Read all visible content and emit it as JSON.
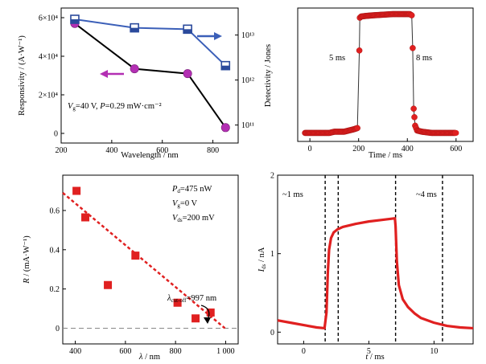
{
  "chart_data": [
    {
      "type": "line",
      "panel": "top-left",
      "xlabel": "Wavelength / nm",
      "ylabel_left": "Responsivity / (A·W⁻¹)",
      "ylabel_right": "Detectivity / Jones",
      "annotation": "Vg=40 V, P=0.29 mW·cm⁻²",
      "annotation_parts": {
        "v": "V",
        "g": "g",
        "rest": "=40 V, ",
        "p": "P",
        "rest2": "=0.29 mW·cm⁻²"
      },
      "xlim": [
        200,
        900
      ],
      "xticks": [
        "200",
        "400",
        "600",
        "800"
      ],
      "ylim_left": [
        -5000,
        65000
      ],
      "yticks_left": [
        "0",
        "2×10⁴",
        "4×10⁴",
        "6×10⁴"
      ],
      "yticks_right": [
        "10¹¹",
        "10¹²",
        "10¹³"
      ],
      "right_log_range": [
        10.6,
        13.6
      ],
      "series": [
        {
          "role": "responsivity",
          "axis": "left",
          "color": "#000000",
          "marker": "#b32fb3",
          "x": [
            254,
            490,
            700,
            850
          ],
          "y": [
            57000,
            33500,
            31000,
            3000
          ]
        },
        {
          "role": "detectivity",
          "axis": "right",
          "color": "#3b5fb8",
          "marker": "#2b4a9c",
          "x": [
            254,
            490,
            700,
            850
          ],
          "y_log": [
            13.35,
            13.16,
            13.13,
            12.32
          ]
        }
      ]
    },
    {
      "type": "line",
      "panel": "top-right",
      "xlabel": "Time / ms",
      "xlim": [
        -50,
        670
      ],
      "xticks": [
        "0",
        "200",
        "400",
        "600"
      ],
      "annotations": [
        "5 ms",
        "8 ms"
      ],
      "color": "#e02020",
      "x": [
        -20,
        0,
        20,
        40,
        60,
        80,
        100,
        120,
        140,
        160,
        180,
        195,
        203,
        205,
        210,
        230,
        260,
        300,
        340,
        380,
        410,
        418,
        422,
        426,
        432,
        440,
        460,
        500,
        540,
        580,
        600
      ],
      "y": [
        0.02,
        0.02,
        0.02,
        0.02,
        0.02,
        0.02,
        0.03,
        0.03,
        0.03,
        0.04,
        0.05,
        0.06,
        0.7,
        0.97,
        0.98,
        0.985,
        0.99,
        0.995,
        1.0,
        1.0,
        1.0,
        0.99,
        0.72,
        0.22,
        0.08,
        0.04,
        0.03,
        0.02,
        0.02,
        0.02,
        0.02
      ]
    },
    {
      "type": "scatter",
      "panel": "bottom-left",
      "xlabel_sym": "λ",
      "xlabel_unit": " / nm",
      "ylabel_sym": "R",
      "ylabel_unit": " / (mA·W⁻¹)",
      "xlim": [
        350,
        1050
      ],
      "xticks": [
        "400",
        "600",
        "800",
        "1 000"
      ],
      "ylim": [
        -0.08,
        0.78
      ],
      "yticks": [
        "0",
        "0.2",
        "0.4",
        "0.6"
      ],
      "legend": {
        "pd": {
          "sym": "P",
          "sub": "d",
          "rest": "=475 nW"
        },
        "vg": {
          "sym": "V",
          "sub": "g",
          "rest": "=0 V"
        },
        "vds": {
          "sym": "V",
          "sub": "ds",
          "rest": "=200 mV"
        }
      },
      "cutoff_label": {
        "sym": "λ",
        "sub": "cut-off",
        "rest": "=997 nm"
      },
      "color": "#e02020",
      "x": [
        405,
        440,
        530,
        640,
        808,
        880,
        940
      ],
      "y": [
        0.7,
        0.565,
        0.22,
        0.37,
        0.13,
        0.05,
        0.08
      ],
      "fit": {
        "x": [
          350,
          997
        ],
        "y": [
          0.69,
          0.0
        ]
      }
    },
    {
      "type": "line",
      "panel": "bottom-right",
      "xlabel_sym": "t",
      "xlabel_unit": " / ms",
      "ylabel_sym": "I",
      "ylabel_sub": "ds",
      "ylabel_unit": " / nA",
      "xlim": [
        -2,
        13
      ],
      "xticks": [
        "0",
        "5",
        "10"
      ],
      "ylim": [
        -0.15,
        2.0
      ],
      "yticks": [
        "0",
        "1",
        "2"
      ],
      "annotations": [
        "~1 ms",
        "~4 ms"
      ],
      "dashed_lines_x": [
        1.65,
        2.65,
        7.05,
        10.65
      ],
      "color": "#e02020",
      "x": [
        -2,
        -1,
        0,
        1,
        1.6,
        1.75,
        1.85,
        1.95,
        2.1,
        2.3,
        2.6,
        3,
        4,
        5,
        6,
        7,
        7.05,
        7.15,
        7.3,
        7.6,
        8,
        8.5,
        9,
        10,
        11,
        12,
        13
      ],
      "y": [
        0.15,
        0.12,
        0.09,
        0.06,
        0.05,
        0.25,
        0.75,
        1.05,
        1.2,
        1.27,
        1.31,
        1.34,
        1.38,
        1.41,
        1.43,
        1.45,
        1.35,
        0.9,
        0.6,
        0.42,
        0.32,
        0.24,
        0.18,
        0.12,
        0.08,
        0.06,
        0.05
      ]
    }
  ]
}
